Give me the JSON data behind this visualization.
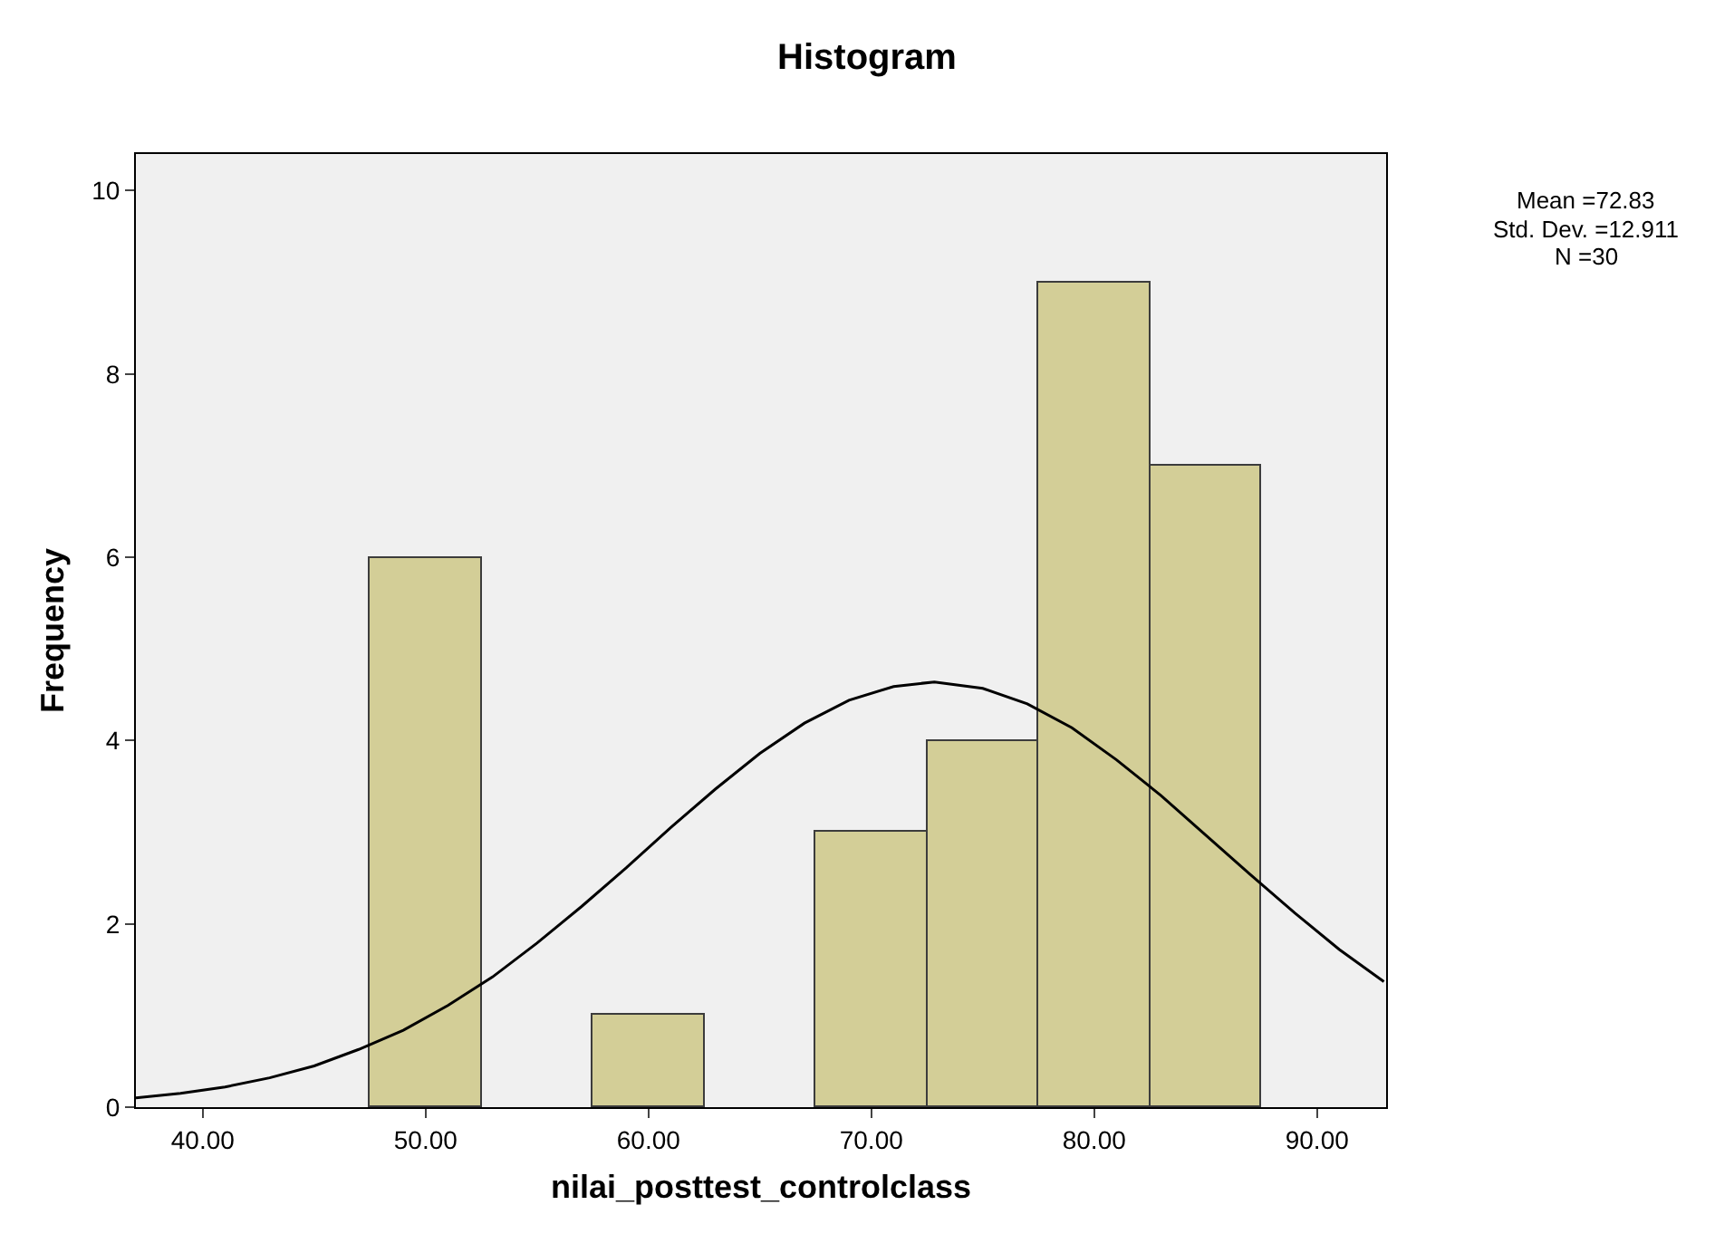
{
  "chart_data": {
    "type": "histogram",
    "title": "Histogram",
    "xlabel": "nilai_posttest_controlclass",
    "ylabel": "Frequency",
    "bins": [
      47.5,
      52.5,
      57.5,
      62.5,
      67.5,
      72.5,
      77.5,
      82.5,
      87.5
    ],
    "values": [
      6,
      0,
      1,
      0,
      3,
      4,
      9,
      7
    ],
    "color": "#d3ce97",
    "series": [
      {
        "type": "line",
        "color": "#000000",
        "x": [
          37,
          39,
          41,
          43,
          45,
          47,
          49,
          51,
          53,
          55,
          57,
          59,
          61,
          63,
          65,
          67,
          69,
          71,
          72.83,
          75,
          77,
          79,
          81,
          83,
          85,
          87,
          89,
          91,
          93
        ],
        "values": [
          0.1,
          0.15,
          0.22,
          0.32,
          0.45,
          0.63,
          0.84,
          1.11,
          1.42,
          1.79,
          2.19,
          2.61,
          3.05,
          3.47,
          3.86,
          4.19,
          4.44,
          4.59,
          4.64,
          4.57,
          4.4,
          4.14,
          3.79,
          3.4,
          2.97,
          2.54,
          2.12,
          1.72,
          1.37
        ]
      }
    ],
    "marker": "none",
    "xlim": [
      37,
      93.1
    ],
    "xticks": [
      {
        "value": 40,
        "label": "40.00"
      },
      {
        "value": 50,
        "label": "50.00"
      },
      {
        "value": 60,
        "label": "60.00"
      },
      {
        "value": 70,
        "label": "70.00"
      },
      {
        "value": 80,
        "label": "80.00"
      },
      {
        "value": 90,
        "label": "90.00"
      }
    ],
    "ylim": [
      0,
      10.4
    ],
    "yticks": [
      0,
      2,
      4,
      6,
      8,
      10
    ],
    "grid": false,
    "annotations": [
      "Mean =72.83",
      "Std. Dev. =12.911",
      "N =30"
    ]
  }
}
